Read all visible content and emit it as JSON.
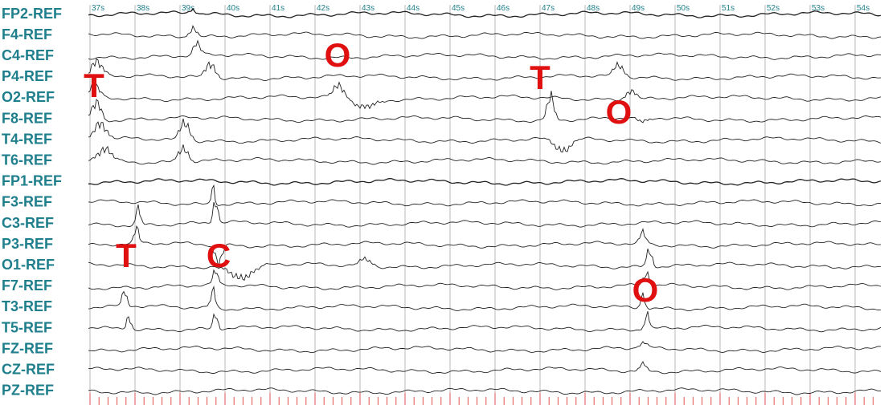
{
  "channels": [
    "FP2-REF",
    "F4-REF",
    "C4-REF",
    "P4-REF",
    "O2-REF",
    "F8-REF",
    "T4-REF",
    "T6-REF",
    "FP1-REF",
    "F3-REF",
    "C3-REF",
    "P3-REF",
    "O1-REF",
    "F7-REF",
    "T3-REF",
    "T5-REF",
    "FZ-REF",
    "CZ-REF",
    "PZ-REF"
  ],
  "time_labels": [
    "37s",
    "38s",
    "39s",
    "40s",
    "41s",
    "42s",
    "43s",
    "44s",
    "45s",
    "46s",
    "47s",
    "48s",
    "49s",
    "50s",
    "51s",
    "52s",
    "53s",
    "54s"
  ],
  "annotations": [
    {
      "text": "T"
    },
    {
      "text": "O"
    },
    {
      "text": "T"
    },
    {
      "text": "O"
    },
    {
      "text": "T"
    },
    {
      "text": "C"
    },
    {
      "text": "O"
    }
  ]
}
